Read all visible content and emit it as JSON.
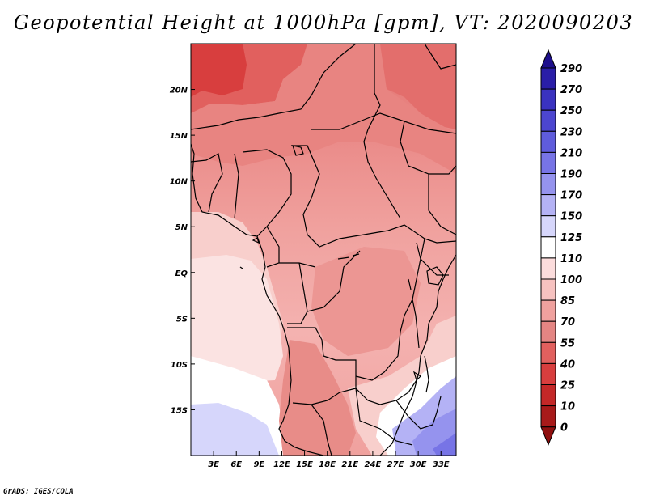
{
  "title": "Geopotential Height at 1000hPa [gpm], VT: 2020090203",
  "footer": "GrADS: IGES/COLA",
  "map": {
    "lon_range": [
      0,
      35
    ],
    "lat_range": [
      -20,
      25
    ],
    "lon_ticks": [
      3,
      6,
      9,
      12,
      15,
      18,
      21,
      24,
      27,
      30,
      33
    ],
    "lon_tick_labels": [
      "3E",
      "6E",
      "9E",
      "12E",
      "15E",
      "18E",
      "21E",
      "24E",
      "27E",
      "30E",
      "33E"
    ],
    "lat_ticks": [
      20,
      15,
      10,
      5,
      0,
      -5,
      -10,
      -15
    ],
    "lat_tick_labels": [
      "20N",
      "15N",
      "10N",
      "5N",
      "EQ",
      "5S",
      "10S",
      "15S"
    ]
  },
  "colorbar": {
    "labels": [
      "290",
      "270",
      "250",
      "230",
      "210",
      "190",
      "170",
      "150",
      "125",
      "110",
      "100",
      "85",
      "70",
      "55",
      "40",
      "25",
      "10",
      "0"
    ],
    "colors": [
      "#1e0f8c",
      "#2a1ea8",
      "#3a32c0",
      "#4c46d0",
      "#5f5cdc",
      "#7774e6",
      "#9593ee",
      "#b4b2f5",
      "#d6d6fb",
      "#ffffff",
      "#fcdcdc",
      "#f7c2c0",
      "#f0a19e",
      "#e48583",
      "#e1605e",
      "#d83e3e",
      "#c42828",
      "#a81a1a",
      "#8f0f0f"
    ]
  }
}
